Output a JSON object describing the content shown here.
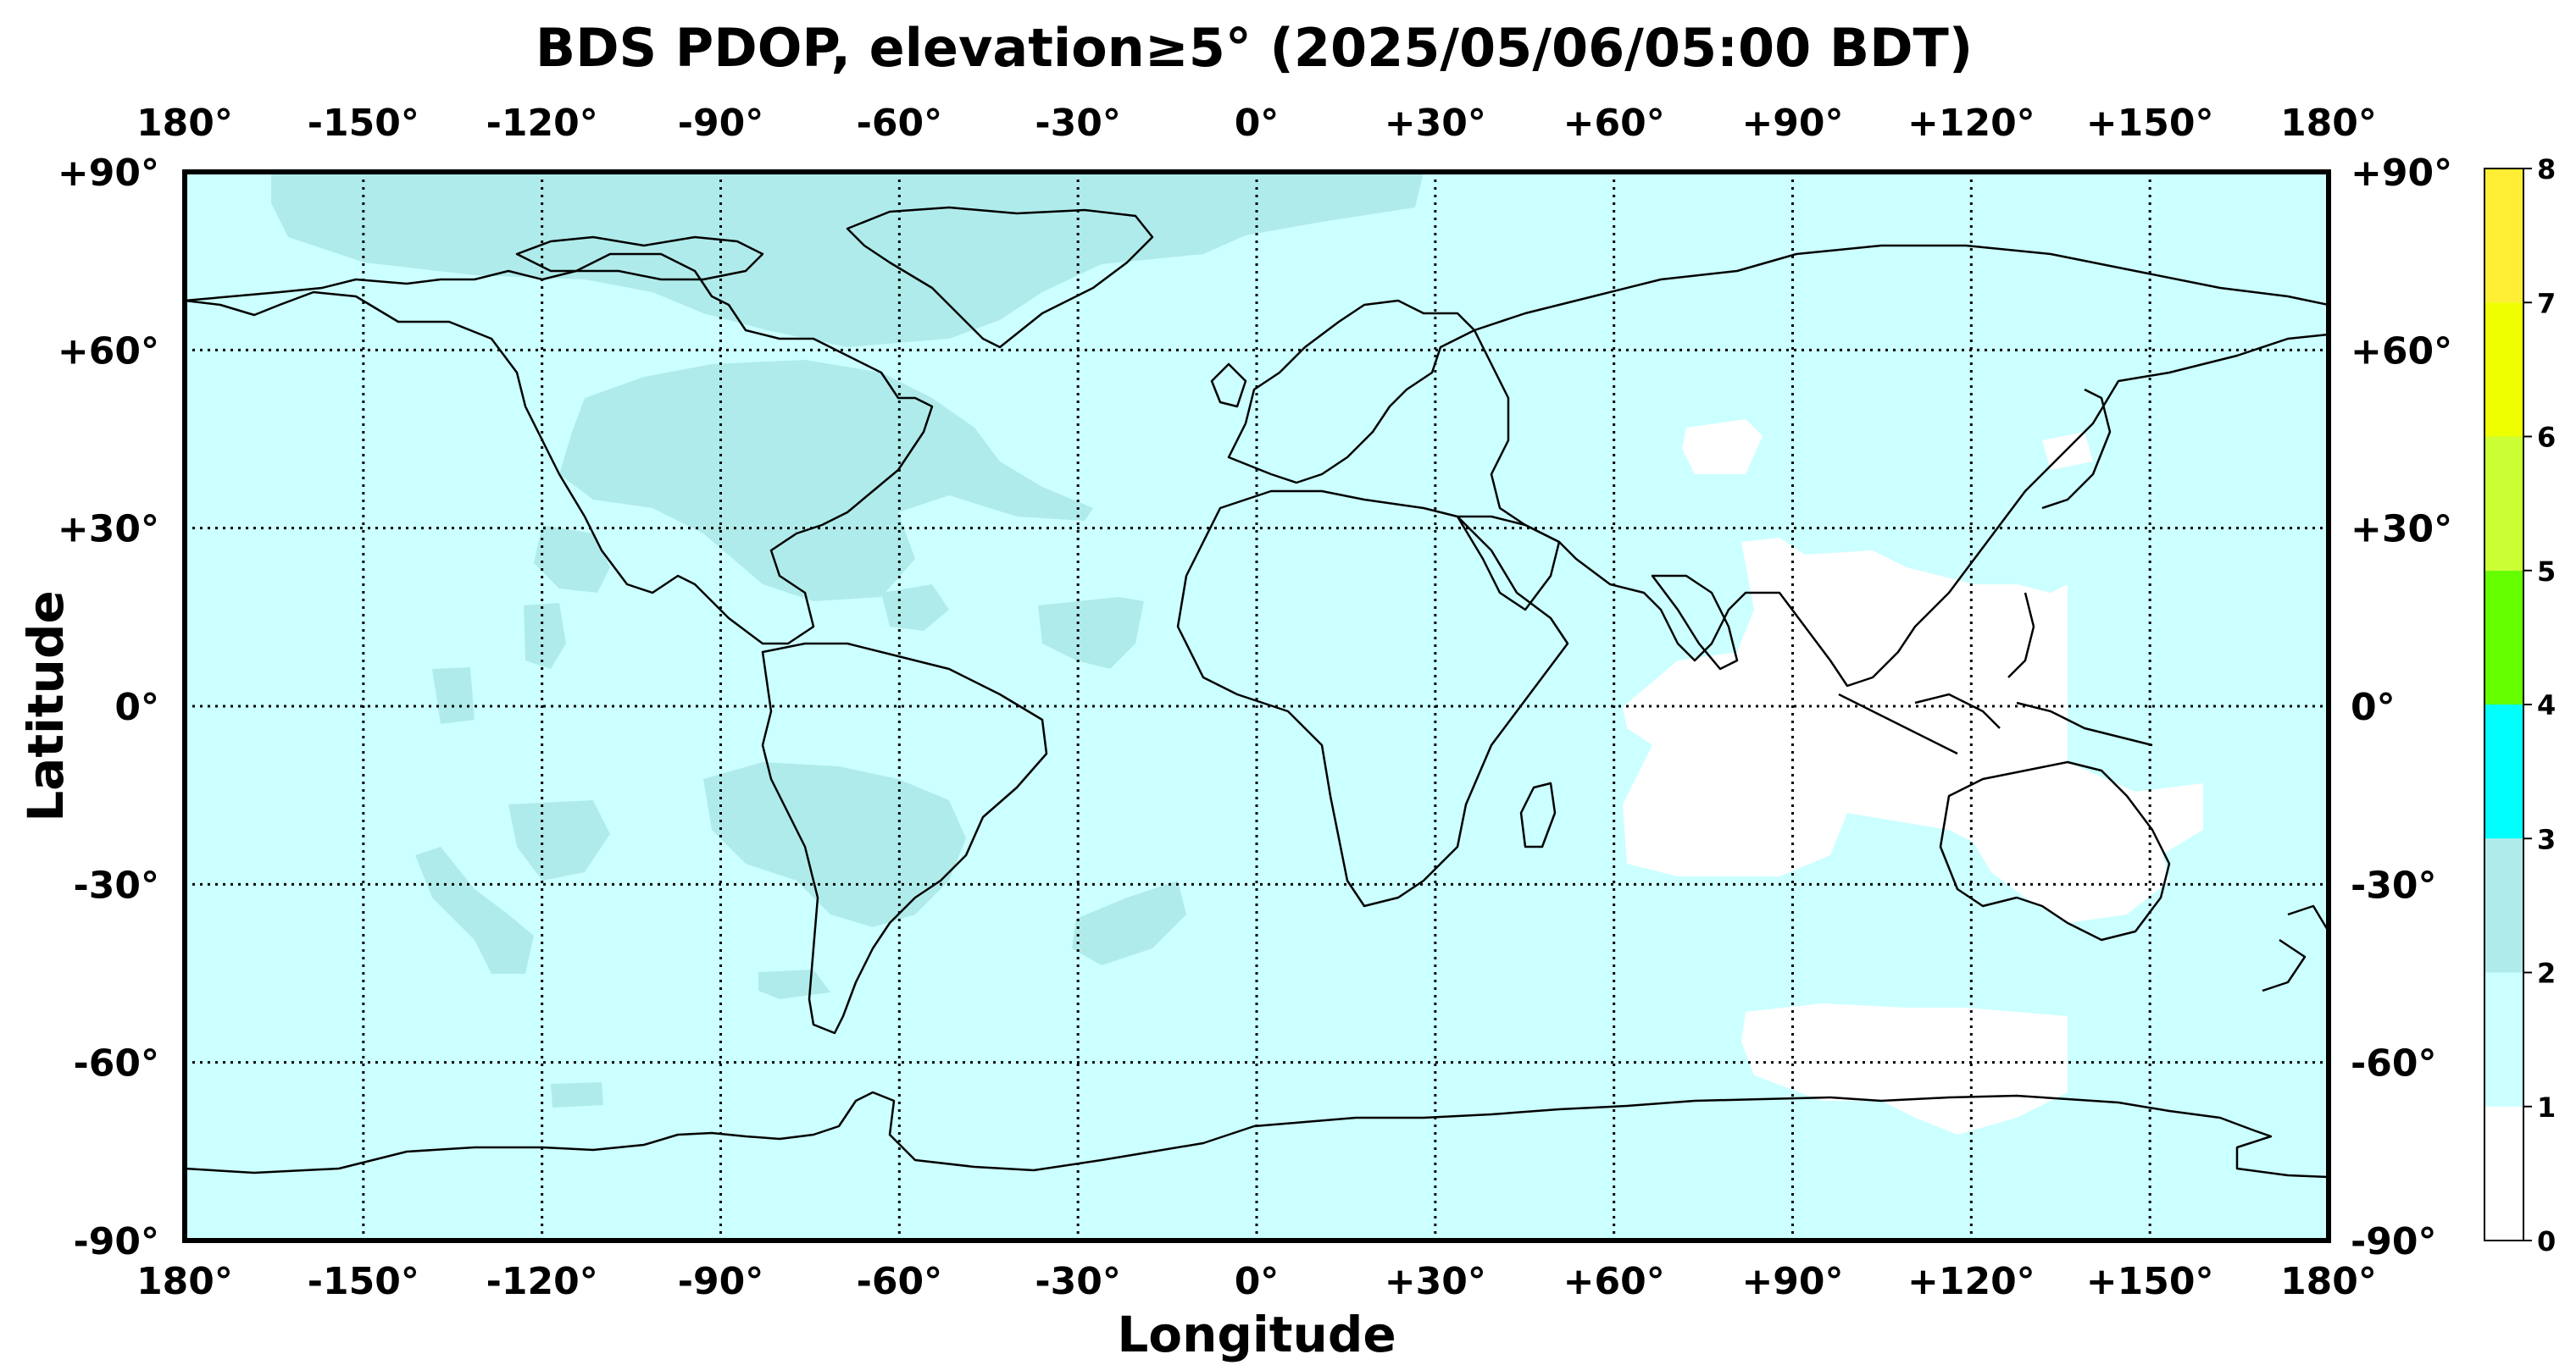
{
  "title": "BDS PDOP, elevation≥5° (2025/05/06/05:00 BDT)",
  "xlabel": "Longitude",
  "ylabel": "Latitude",
  "lon_ticks": [
    "180°",
    "-150°",
    "-120°",
    "-90°",
    "-60°",
    "-30°",
    "0°",
    "+30°",
    "+60°",
    "+90°",
    "+120°",
    "+150°",
    "180°"
  ],
  "lat_ticks": [
    "+90°",
    "+60°",
    "+30°",
    "0°",
    "-30°",
    "-60°",
    "-90°"
  ],
  "colorbar": {
    "ticks": [
      "0",
      "1",
      "2",
      "3",
      "4",
      "5",
      "6",
      "7",
      "8"
    ],
    "bins": [
      {
        "range": [
          0,
          1
        ],
        "color": "#ffffff"
      },
      {
        "range": [
          1,
          2
        ],
        "color": "#ccffff"
      },
      {
        "range": [
          2,
          3
        ],
        "color": "#b0ebeb"
      },
      {
        "range": [
          3,
          4
        ],
        "color": "#00ffff"
      },
      {
        "range": [
          4,
          5
        ],
        "color": "#66ff00"
      },
      {
        "range": [
          5,
          6
        ],
        "color": "#ccff33"
      },
      {
        "range": [
          6,
          7
        ],
        "color": "#eeff00"
      },
      {
        "range": [
          7,
          8
        ],
        "color": "#ffee33"
      }
    ]
  },
  "pdop_field": {
    "background_bin": "1-2",
    "regions_2_to_3": [
      "Arctic / Greenland",
      "North America",
      "North Atlantic",
      "Caribbean",
      "Eastern Pacific",
      "South America",
      "South Pacific",
      "South Atlantic"
    ],
    "regions_below_1": [
      "Central Asia",
      "East & Southeast Asia",
      "Indian Ocean",
      "Australia",
      "Antarctic coast south of Australia"
    ]
  }
}
